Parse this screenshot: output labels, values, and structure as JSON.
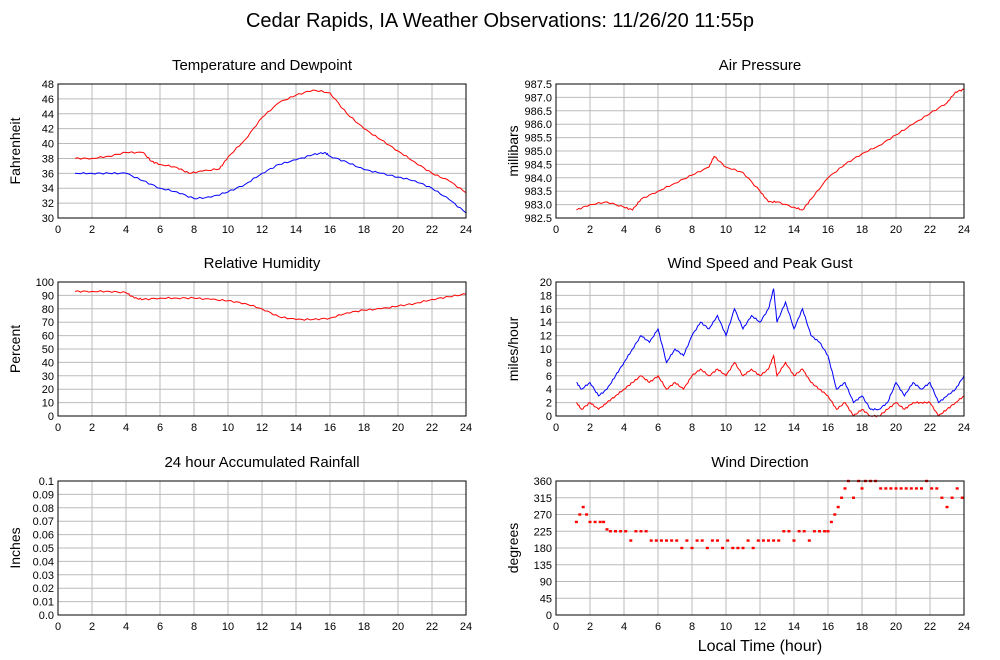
{
  "page_title": "Cedar Rapids, IA Weather Observations: 11/26/20 11:55p",
  "colors": {
    "red": "#ff0000",
    "blue": "#0000ff",
    "grid": "#bbbbbb"
  },
  "chart_data": [
    {
      "id": "temp",
      "type": "line",
      "title": "Temperature and Dewpoint",
      "ylabel": "Fahrenheit",
      "xlabel": "",
      "xlim": [
        0,
        24
      ],
      "ylim": [
        30,
        48
      ],
      "xticks": [
        0,
        2,
        4,
        6,
        8,
        10,
        12,
        14,
        16,
        18,
        20,
        22,
        24
      ],
      "yticks": [
        30,
        32,
        34,
        36,
        38,
        40,
        42,
        44,
        46,
        48
      ],
      "grid": true,
      "series": [
        {
          "color": "#ff0000",
          "x": [
            1,
            2,
            3,
            4,
            5,
            5.5,
            6,
            7,
            7.7,
            8.5,
            9.5,
            10,
            11,
            12,
            13,
            14,
            15,
            16,
            17,
            18,
            19,
            20,
            21,
            22,
            23,
            24
          ],
          "y": [
            38,
            38,
            38.3,
            38.8,
            38.8,
            37.6,
            37.2,
            36.8,
            36.0,
            36.3,
            36.6,
            38.2,
            40.5,
            43.5,
            45.5,
            46.5,
            47.2,
            46.8,
            44.0,
            42.0,
            40.5,
            39.0,
            37.5,
            36.0,
            35.0,
            33.4
          ]
        },
        {
          "color": "#0000ff",
          "x": [
            1,
            2,
            3,
            4,
            5,
            6,
            7,
            8,
            9,
            10,
            11,
            12,
            13,
            14,
            15,
            15.7,
            16,
            17,
            18,
            19,
            20,
            21,
            22,
            23,
            24
          ],
          "y": [
            36,
            36,
            36,
            36,
            35,
            34,
            33.5,
            32.6,
            32.8,
            33.5,
            34.5,
            36.0,
            37.2,
            37.8,
            38.5,
            38.8,
            38.3,
            37.5,
            36.5,
            36.0,
            35.5,
            35.0,
            34.0,
            32.5,
            30.7
          ]
        }
      ]
    },
    {
      "id": "pressure",
      "type": "line",
      "title": "Air Pressure",
      "ylabel": "millibars",
      "xlabel": "",
      "xlim": [
        0,
        24
      ],
      "ylim": [
        982.5,
        987.5
      ],
      "xticks": [
        0,
        2,
        4,
        6,
        8,
        10,
        12,
        14,
        16,
        18,
        20,
        22,
        24
      ],
      "yticks": [
        982.5,
        983.0,
        983.5,
        984.0,
        984.5,
        985.0,
        985.5,
        986.0,
        986.5,
        987.0,
        987.5
      ],
      "grid": true,
      "series": [
        {
          "color": "#ff0000",
          "x": [
            1.2,
            2,
            3,
            4,
            4.5,
            5,
            6,
            7,
            8,
            9,
            9.3,
            10,
            11,
            12,
            12.5,
            13,
            14,
            14.5,
            15,
            16,
            17,
            18,
            19,
            20,
            21,
            22,
            23,
            23.5,
            24
          ],
          "y": [
            982.8,
            983.0,
            983.1,
            982.9,
            982.8,
            983.2,
            983.5,
            983.8,
            984.1,
            984.4,
            984.8,
            984.4,
            984.2,
            983.5,
            983.1,
            983.1,
            982.9,
            982.8,
            983.2,
            984.0,
            984.5,
            984.9,
            985.2,
            985.6,
            986.0,
            986.4,
            986.8,
            987.2,
            987.3
          ]
        }
      ]
    },
    {
      "id": "humidity",
      "type": "line",
      "title": "Relative Humidity",
      "ylabel": "Percent",
      "xlabel": "",
      "xlim": [
        0,
        24
      ],
      "ylim": [
        0,
        100
      ],
      "xticks": [
        0,
        2,
        4,
        6,
        8,
        10,
        12,
        14,
        16,
        18,
        20,
        22,
        24
      ],
      "yticks": [
        0,
        10,
        20,
        30,
        40,
        50,
        60,
        70,
        80,
        90,
        100
      ],
      "grid": true,
      "series": [
        {
          "color": "#ff0000",
          "x": [
            1,
            2,
            3,
            4,
            4.5,
            5,
            6,
            7,
            8,
            9,
            10,
            11,
            12,
            13,
            14,
            15,
            16,
            17,
            18,
            19,
            20,
            21,
            22,
            23,
            24
          ],
          "y": [
            93,
            93,
            93,
            92,
            88,
            87,
            88,
            88,
            88,
            87,
            86,
            84,
            80,
            74,
            72,
            72,
            73,
            77,
            79,
            80,
            82,
            84,
            87,
            89,
            91
          ]
        }
      ]
    },
    {
      "id": "wind",
      "type": "line",
      "title": "Wind Speed and Peak Gust",
      "ylabel": "miles/hour",
      "xlabel": "",
      "xlim": [
        0,
        24
      ],
      "ylim": [
        0,
        20
      ],
      "xticks": [
        0,
        2,
        4,
        6,
        8,
        10,
        12,
        14,
        16,
        18,
        20,
        22,
        24
      ],
      "yticks": [
        0,
        2,
        4,
        6,
        8,
        10,
        12,
        14,
        16,
        18,
        20
      ],
      "grid": true,
      "series": [
        {
          "color": "#0000ff",
          "x": [
            1.2,
            1.5,
            2,
            2.5,
            3,
            3.5,
            4,
            4.5,
            5,
            5.5,
            6,
            6.5,
            7,
            7.5,
            8,
            8.5,
            9,
            9.5,
            10,
            10.5,
            11,
            11.5,
            12,
            12.5,
            12.8,
            13,
            13.5,
            14,
            14.5,
            15,
            15.5,
            16,
            16.5,
            17,
            17.5,
            18,
            18.5,
            19,
            19.5,
            20,
            20.5,
            21,
            21.5,
            22,
            22.5,
            23,
            23.5,
            24
          ],
          "y": [
            5,
            4,
            5,
            3,
            4,
            6,
            8,
            10,
            12,
            11,
            13,
            8,
            10,
            9,
            12,
            14,
            13,
            15,
            12,
            16,
            13,
            15,
            14,
            16,
            19,
            14,
            17,
            13,
            16,
            12,
            11,
            9,
            4,
            5,
            2,
            3,
            1,
            1,
            2,
            5,
            3,
            5,
            4,
            5,
            2,
            3,
            4,
            6
          ]
        },
        {
          "color": "#ff0000",
          "x": [
            1.2,
            1.5,
            2,
            2.5,
            3,
            3.5,
            4,
            4.5,
            5,
            5.5,
            6,
            6.5,
            7,
            7.5,
            8,
            8.5,
            9,
            9.5,
            10,
            10.5,
            11,
            11.5,
            12,
            12.5,
            12.8,
            13,
            13.5,
            14,
            14.5,
            15,
            15.5,
            16,
            16.5,
            17,
            17.5,
            18,
            18.5,
            19,
            19.5,
            20,
            20.5,
            21,
            21.5,
            22,
            22.5,
            23,
            23.5,
            24
          ],
          "y": [
            2,
            1,
            2,
            1,
            2,
            3,
            4,
            5,
            6,
            5,
            6,
            4,
            5,
            4,
            6,
            7,
            6,
            7,
            6,
            8,
            6,
            7,
            6,
            7,
            9,
            6,
            8,
            6,
            7,
            5,
            4,
            3,
            1,
            2,
            0,
            1,
            0,
            0,
            1,
            2,
            1,
            2,
            2,
            2,
            0,
            1,
            2,
            3
          ]
        }
      ]
    },
    {
      "id": "rain",
      "type": "line",
      "title": "24 hour Accumulated Rainfall",
      "ylabel": "Inches",
      "xlabel": "",
      "xlim": [
        0,
        24
      ],
      "ylim": [
        0,
        0.1
      ],
      "xticks": [
        0,
        2,
        4,
        6,
        8,
        10,
        12,
        14,
        16,
        18,
        20,
        22,
        24
      ],
      "yticks": [
        0.0,
        0.01,
        0.02,
        0.03,
        0.04,
        0.05,
        0.06,
        0.07,
        0.08,
        0.09,
        0.1
      ],
      "ytick_labels": [
        "0.0",
        "0.01",
        "0.02",
        "0.03",
        "0.04",
        "0.05",
        "0.06",
        "0.07",
        "0.08",
        "0.09",
        "0.1"
      ],
      "grid": true,
      "series": [
        {
          "color": "#ff0000",
          "x": [
            0,
            24
          ],
          "y": [
            0,
            0
          ]
        }
      ]
    },
    {
      "id": "direction",
      "type": "scatter",
      "title": "Wind Direction",
      "ylabel": "degrees",
      "xlabel": "Local Time (hour)",
      "xlim": [
        0,
        24
      ],
      "ylim": [
        0,
        360
      ],
      "xticks": [
        0,
        2,
        4,
        6,
        8,
        10,
        12,
        14,
        16,
        18,
        20,
        22,
        24
      ],
      "yticks": [
        0,
        45,
        90,
        135,
        180,
        225,
        270,
        315,
        360
      ],
      "grid": true,
      "series": [
        {
          "color": "#ff0000",
          "x": [
            1.2,
            1.4,
            1.6,
            1.8,
            2.0,
            2.3,
            2.6,
            2.8,
            3.0,
            3.2,
            3.5,
            3.8,
            4.1,
            4.4,
            4.7,
            5.0,
            5.3,
            5.6,
            5.9,
            6.2,
            6.5,
            6.8,
            7.1,
            7.4,
            7.7,
            8.0,
            8.3,
            8.6,
            8.9,
            9.2,
            9.5,
            9.8,
            10.1,
            10.4,
            10.7,
            11.0,
            11.3,
            11.6,
            11.9,
            12.2,
            12.5,
            12.8,
            13.1,
            13.4,
            13.7,
            14.0,
            14.3,
            14.6,
            14.9,
            15.2,
            15.5,
            15.8,
            16.0,
            16.2,
            16.4,
            16.6,
            16.8,
            17.0,
            17.2,
            17.5,
            17.8,
            18.0,
            18.2,
            18.5,
            18.8,
            19.1,
            19.4,
            19.7,
            20.0,
            20.3,
            20.6,
            20.9,
            21.2,
            21.5,
            21.8,
            22.1,
            22.4,
            22.7,
            23.0,
            23.3,
            23.6,
            23.9
          ],
          "y": [
            250,
            270,
            290,
            270,
            250,
            250,
            250,
            250,
            230,
            225,
            225,
            225,
            225,
            200,
            225,
            225,
            225,
            200,
            200,
            200,
            200,
            200,
            200,
            180,
            200,
            180,
            200,
            200,
            180,
            200,
            200,
            180,
            200,
            180,
            180,
            180,
            200,
            180,
            200,
            200,
            200,
            200,
            200,
            225,
            225,
            200,
            225,
            225,
            200,
            225,
            225,
            225,
            225,
            250,
            270,
            290,
            315,
            340,
            360,
            315,
            360,
            340,
            360,
            360,
            360,
            340,
            340,
            340,
            340,
            340,
            340,
            340,
            340,
            340,
            360,
            340,
            340,
            315,
            290,
            315,
            340,
            315
          ]
        }
      ]
    }
  ]
}
